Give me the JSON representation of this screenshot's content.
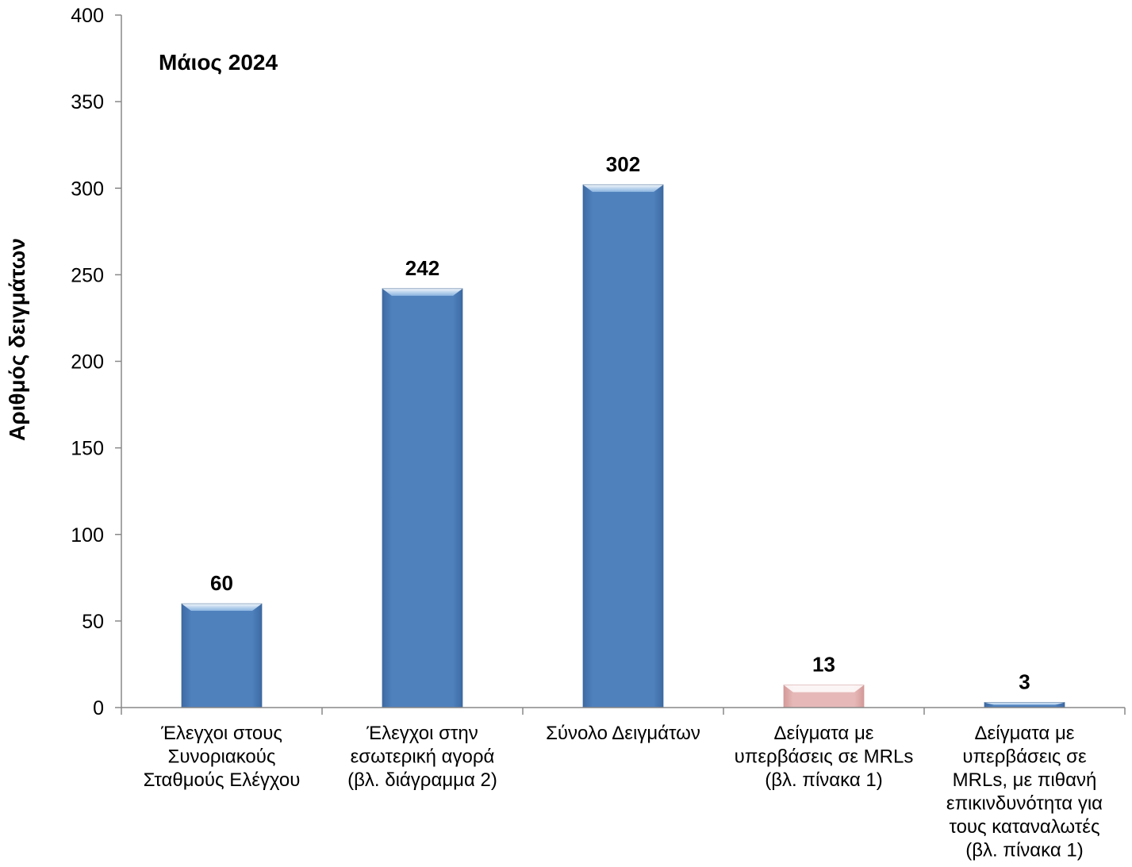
{
  "chart_data": {
    "type": "bar",
    "title": "Μάιος 2024",
    "xlabel": "",
    "ylabel": "Αριθμός δειγμάτων",
    "ylim": [
      0,
      400
    ],
    "yticks": [
      0,
      50,
      100,
      150,
      200,
      250,
      300,
      350,
      400
    ],
    "grid": false,
    "legend": "none",
    "categories": [
      [
        "Έλεγχοι στους",
        "Συνοριακούς",
        "Σταθμούς Ελέγχου"
      ],
      [
        "Έλεγχοι στην",
        "εσωτερική αγορά",
        "(βλ. διάγραμμα 2)"
      ],
      [
        "Σύνολο Δειγμάτων"
      ],
      [
        "Δείγματα με",
        "υπερβάσεις σε MRLs",
        "(βλ. πίνακα 1)"
      ],
      [
        "Δείγματα με",
        "υπερβάσεις σε",
        "MRLs, με πιθανή",
        "επικινδυνότητα για",
        "τους καταναλωτές",
        "(βλ. πίνακα 1)"
      ]
    ],
    "values": [
      60,
      242,
      302,
      13,
      3
    ],
    "data_labels": [
      "60",
      "242",
      "302",
      "13",
      "3"
    ],
    "bar_colors": [
      "#4f81bd",
      "#4f81bd",
      "#4f81bd",
      "#e6b9b8",
      "#4f81bd"
    ]
  }
}
